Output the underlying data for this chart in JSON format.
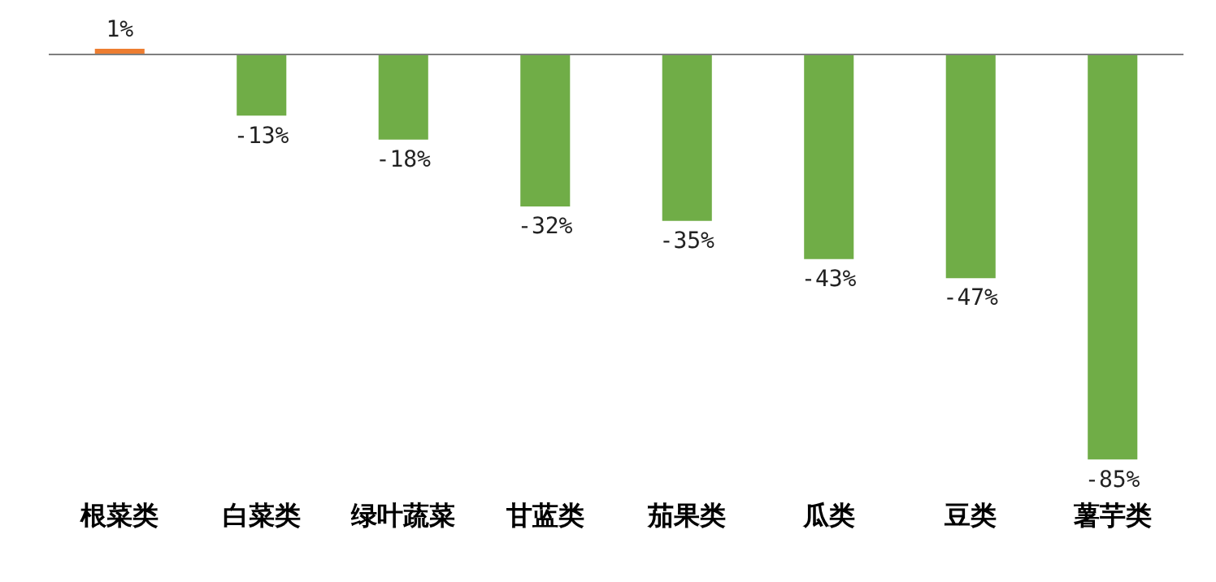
{
  "chart_data": {
    "type": "bar",
    "categories": [
      "根菜类",
      "白菜类",
      "绿叶蔬菜",
      "甘蓝类",
      "茄果类",
      "瓜类",
      "豆类",
      "薯芋类"
    ],
    "values": [
      1,
      -13,
      -18,
      -32,
      -35,
      -43,
      -47,
      -85
    ],
    "colors": [
      "#ed7d31",
      "#70ad47",
      "#70ad47",
      "#70ad47",
      "#70ad47",
      "#70ad47",
      "#70ad47",
      "#70ad47"
    ],
    "value_labels": [
      "1%",
      "-13%",
      "-18%",
      "-32%",
      "-35%",
      "-43%",
      "-47%",
      "-85%"
    ],
    "grid": false,
    "legend": false
  }
}
